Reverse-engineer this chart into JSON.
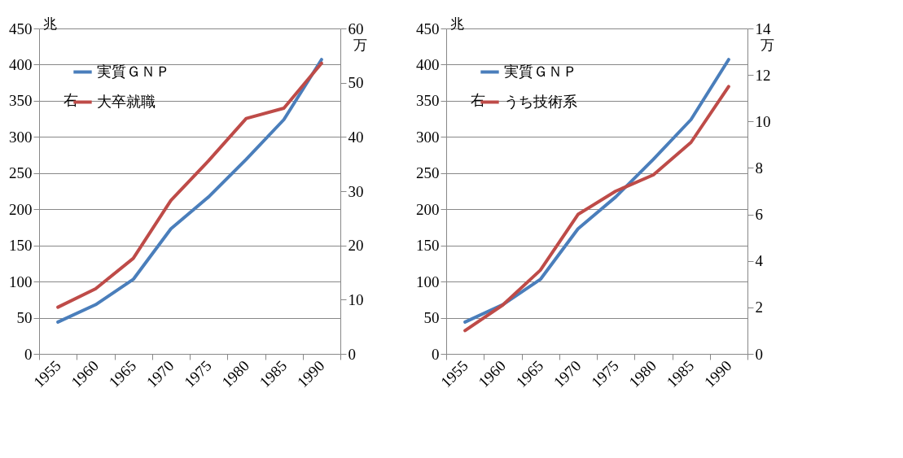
{
  "chart_data": [
    {
      "type": "line",
      "categories": [
        "1955",
        "1960",
        "1965",
        "1970",
        "1975",
        "1980",
        "1985",
        "1990"
      ],
      "ylabel": "兆",
      "y2label": "万",
      "ylim": [
        0,
        450
      ],
      "yticks": [
        0,
        50,
        100,
        150,
        200,
        250,
        300,
        350,
        400,
        450
      ],
      "y2lim": [
        0,
        60
      ],
      "y2ticks": [
        0,
        10,
        20,
        30,
        40,
        50,
        60
      ],
      "grid": "y",
      "legend": "top left",
      "annotations": [
        "右"
      ],
      "series": [
        {
          "name": "実質ＧＮＰ",
          "color": "#4a7ebb",
          "values": [
            44,
            68,
            103,
            173,
            217,
            269,
            324,
            407
          ]
        },
        {
          "name": "大卒就職",
          "color": "#be4b48",
          "axis": "y2",
          "values": [
            8.6,
            12.0,
            17.6,
            28.3,
            35.6,
            43.4,
            45.3,
            53.6
          ]
        }
      ]
    },
    {
      "type": "line",
      "categories": [
        "1955",
        "1960",
        "1965",
        "1970",
        "1975",
        "1980",
        "1985",
        "1990"
      ],
      "ylabel": "兆",
      "y2label": "万",
      "ylim": [
        0,
        450
      ],
      "yticks": [
        0,
        50,
        100,
        150,
        200,
        250,
        300,
        350,
        400,
        450
      ],
      "y2lim": [
        0,
        14
      ],
      "y2ticks": [
        0,
        2,
        4,
        6,
        8,
        10,
        12,
        14
      ],
      "grid": "y",
      "legend": "top left",
      "annotations": [
        "右"
      ],
      "series": [
        {
          "name": "実質ＧＮＰ",
          "color": "#4a7ebb",
          "values": [
            44,
            68,
            103,
            173,
            217,
            269,
            324,
            407
          ]
        },
        {
          "name": "うち技術系",
          "color": "#be4b48",
          "axis": "y2",
          "values": [
            1.0,
            2.1,
            3.6,
            6.0,
            7.0,
            7.7,
            9.1,
            11.5
          ]
        }
      ]
    }
  ]
}
